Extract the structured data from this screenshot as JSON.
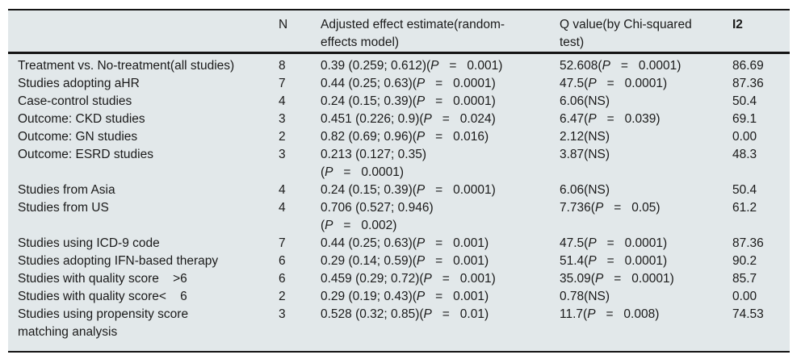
{
  "colors": {
    "table_background": "#e2e8ea",
    "rule": "#141414",
    "text": "#1a1a1a"
  },
  "table": {
    "header": {
      "col_blank": "",
      "col_n": "N",
      "col_estimate_lines": [
        "Adjusted effect estimate(random-",
        "effects model)"
      ],
      "col_q_lines": [
        "Q value(by Chi-squared",
        "test)"
      ],
      "col_i2": "I2"
    },
    "rows": [
      {
        "label_lines": [
          "Treatment vs. No-treatment(all studies)"
        ],
        "n": "8",
        "est": "0.39 (0.259; 0.612)",
        "est_p": "P   =   0.001",
        "est_p_newline": false,
        "q": "52.608",
        "q_p": "P   =   0.0001",
        "i2": "86.69"
      },
      {
        "label_lines": [
          "Studies adopting aHR"
        ],
        "n": "7",
        "est": "0.44 (0.25; 0.63)",
        "est_p": "P   =   0.0001",
        "est_p_newline": false,
        "q": "47.5",
        "q_p": "P   =   0.0001",
        "i2": "87.36"
      },
      {
        "label_lines": [
          "Case-control studies"
        ],
        "n": "4",
        "est": "0.24 (0.15; 0.39)",
        "est_p": "P   =   0.0001",
        "est_p_newline": false,
        "q": "6.06",
        "q_p": "NS",
        "i2": "50.4"
      },
      {
        "label_lines": [
          "Outcome: CKD studies"
        ],
        "n": "3",
        "est": "0.451 (0.226; 0.9)",
        "est_p": "P   =   0.024",
        "est_p_newline": false,
        "q": "6.47",
        "q_p": "P   =   0.039",
        "i2": "69.1"
      },
      {
        "label_lines": [
          "Outcome: GN studies"
        ],
        "n": "2",
        "est": "0.82 (0.69; 0.96)",
        "est_p": "P   =   0.016",
        "est_p_newline": false,
        "q": "2.12",
        "q_p": "NS",
        "i2": "0.00"
      },
      {
        "label_lines": [
          "Outcome: ESRD studies"
        ],
        "n": "3",
        "est": "0.213 (0.127; 0.35)",
        "est_p": "P   =   0.0001",
        "est_p_newline": true,
        "q": "3.87",
        "q_p": "NS",
        "i2": "48.3"
      },
      {
        "label_lines": [
          "Studies from Asia"
        ],
        "n": "4",
        "est": "0.24 (0.15; 0.39)",
        "est_p": "P   =   0.0001",
        "est_p_newline": false,
        "q": "6.06",
        "q_p": "NS",
        "i2": "50.4"
      },
      {
        "label_lines": [
          "Studies from US"
        ],
        "n": "4",
        "est": "0.706 (0.527; 0.946)",
        "est_p": "P   =   0.002",
        "est_p_newline": true,
        "q": "7.736",
        "q_p": "P   =   0.05",
        "i2": "61.2"
      },
      {
        "label_lines": [
          "Studies using ICD-9 code"
        ],
        "n": "7",
        "est": "0.44 (0.25; 0.63)",
        "est_p": "P   =   0.001",
        "est_p_newline": false,
        "q": "47.5",
        "q_p": "P   =   0.0001",
        "i2": "87.36"
      },
      {
        "label_lines": [
          "Studies adopting IFN-based therapy"
        ],
        "n": "6",
        "est": "0.29 (0.14; 0.59)",
        "est_p": "P   =   0.001",
        "est_p_newline": false,
        "q": "51.4",
        "q_p": "P   =   0.0001",
        "i2": "90.2"
      },
      {
        "label_lines": [
          "Studies with quality score    >6"
        ],
        "n": "6",
        "est": "0.459 (0.29; 0.72)",
        "est_p": "P   =   0.001",
        "est_p_newline": false,
        "q": "35.09",
        "q_p": "P   =   0.0001",
        "i2": "85.7"
      },
      {
        "label_lines": [
          "Studies with quality score<    6"
        ],
        "n": "2",
        "est": "0.29 (0.19; 0.43)",
        "est_p": "P   =   0.001",
        "est_p_newline": false,
        "q": "0.78",
        "q_p": "NS",
        "i2": "0.00"
      },
      {
        "label_lines": [
          "Studies using propensity score",
          "matching analysis"
        ],
        "n": "3",
        "est": "0.528 (0.32; 0.85)",
        "est_p": "P   =   0.01",
        "est_p_newline": false,
        "q": "11.7",
        "q_p": "P   =   0.008",
        "i2": "74.53"
      }
    ]
  }
}
